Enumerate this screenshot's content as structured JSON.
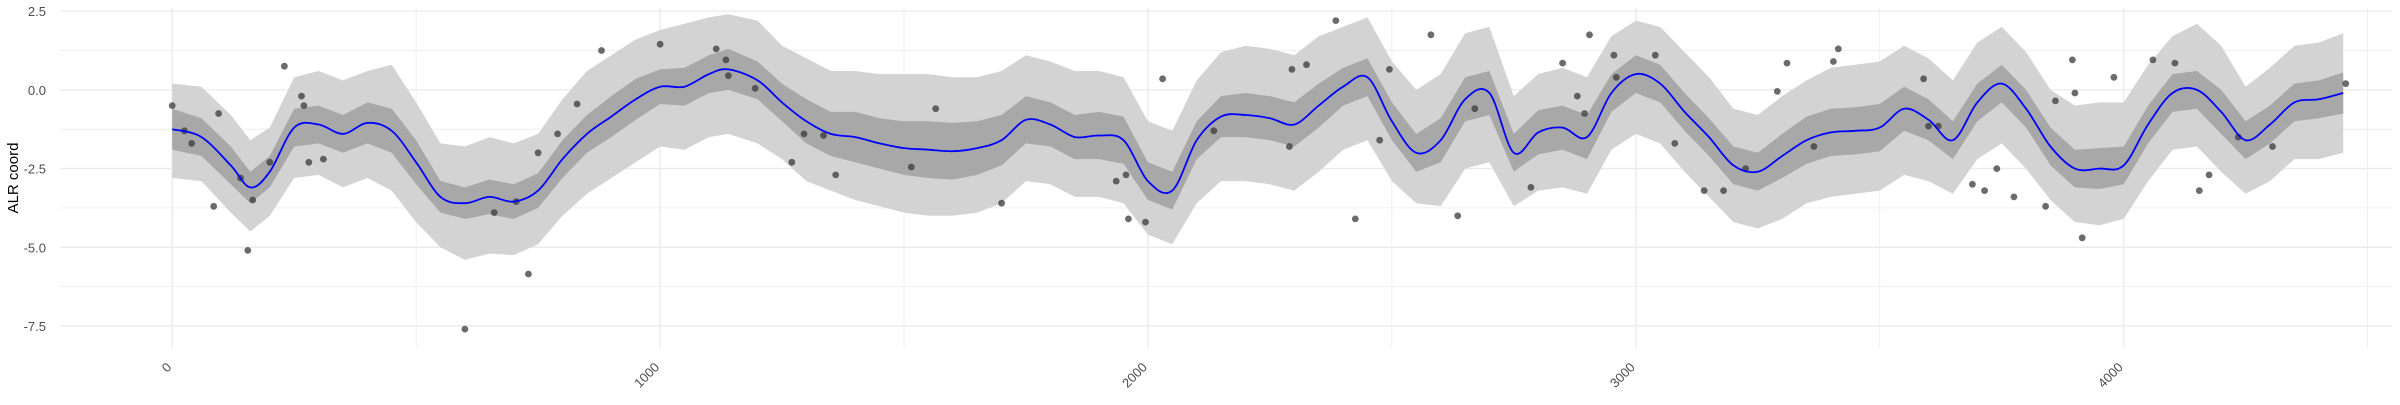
{
  "chart_data": {
    "type": "line",
    "title": "",
    "xlabel": "",
    "ylabel": "ALR coord",
    "xlim": [
      -230,
      4550
    ],
    "ylim": [
      -8.2,
      2.6
    ],
    "grid": true,
    "legend": "none",
    "x_ticks": [
      0,
      1000,
      2000,
      3000,
      4000
    ],
    "x_tick_labels": [
      "0",
      "1000",
      "2000",
      "3000",
      "4000"
    ],
    "y_ticks": [
      2.5,
      0,
      -2.5,
      -5,
      -7.5
    ],
    "y_tick_labels": [
      "2.5",
      "0.0",
      "-2.5",
      "-5.0",
      "-7.5"
    ],
    "colors": {
      "mean_line": "#0000ff",
      "inner_band": "#a8a8a8",
      "outer_band": "#d3d3d3",
      "points": "#3a3a3a",
      "grid": "#ebebeb",
      "tick_text": "#4d4d4d",
      "axis_title": "#000000"
    },
    "bands": {
      "x": [
        0,
        60,
        120,
        160,
        200,
        250,
        300,
        350,
        400,
        450,
        500,
        550,
        600,
        650,
        700,
        750,
        800,
        850,
        900,
        950,
        1000,
        1050,
        1100,
        1140,
        1200,
        1250,
        1300,
        1350,
        1400,
        1450,
        1500,
        1550,
        1600,
        1650,
        1700,
        1750,
        1800,
        1850,
        1900,
        1950,
        2000,
        2050,
        2100,
        2150,
        2200,
        2250,
        2300,
        2350,
        2400,
        2450,
        2500,
        2550,
        2600,
        2650,
        2700,
        2750,
        2800,
        2850,
        2900,
        2950,
        3000,
        3050,
        3100,
        3150,
        3200,
        3250,
        3300,
        3350,
        3400,
        3450,
        3500,
        3550,
        3600,
        3650,
        3700,
        3750,
        3800,
        3850,
        3900,
        3950,
        4000,
        4050,
        4100,
        4150,
        4200,
        4250,
        4300,
        4350,
        4400,
        4450
      ],
      "mean": [
        -1.25,
        -1.5,
        -2.4,
        -3.1,
        -2.6,
        -1.2,
        -1.1,
        -1.4,
        -1.05,
        -1.3,
        -2.3,
        -3.4,
        -3.6,
        -3.4,
        -3.55,
        -3.2,
        -2.2,
        -1.4,
        -0.85,
        -0.3,
        0.1,
        0.1,
        0.5,
        0.65,
        0.3,
        -0.4,
        -1.0,
        -1.4,
        -1.5,
        -1.7,
        -1.85,
        -1.9,
        -1.95,
        -1.85,
        -1.6,
        -0.95,
        -1.1,
        -1.5,
        -1.45,
        -1.6,
        -2.9,
        -3.2,
        -1.6,
        -0.85,
        -0.8,
        -0.9,
        -1.1,
        -0.5,
        0.1,
        0.4,
        -1.0,
        -2.0,
        -1.6,
        -0.3,
        -0.1,
        -2.0,
        -1.35,
        -1.2,
        -1.5,
        -0.1,
        0.5,
        0.2,
        -0.7,
        -1.5,
        -2.4,
        -2.6,
        -2.1,
        -1.6,
        -1.35,
        -1.3,
        -1.2,
        -0.6,
        -0.95,
        -1.6,
        -0.4,
        0.2,
        -0.6,
        -1.8,
        -2.5,
        -2.5,
        -2.4,
        -1.1,
        -0.1,
        0.0,
        -0.7,
        -1.6,
        -1.1,
        -0.4,
        -0.3,
        -0.1
      ],
      "inner_lower": [
        -1.9,
        -2.1,
        -3.0,
        -3.6,
        -3.1,
        -1.8,
        -1.7,
        -2.0,
        -1.7,
        -2.0,
        -3.0,
        -3.9,
        -4.1,
        -3.95,
        -4.1,
        -3.75,
        -2.8,
        -2.0,
        -1.5,
        -0.95,
        -0.45,
        -0.5,
        -0.1,
        0.0,
        -0.3,
        -1.0,
        -1.7,
        -2.1,
        -2.3,
        -2.5,
        -2.7,
        -2.8,
        -2.85,
        -2.7,
        -2.4,
        -1.7,
        -1.8,
        -2.2,
        -2.2,
        -2.35,
        -3.5,
        -3.8,
        -2.2,
        -1.5,
        -1.5,
        -1.6,
        -1.8,
        -1.2,
        -0.5,
        -0.2,
        -1.6,
        -2.6,
        -2.3,
        -1.0,
        -0.8,
        -2.6,
        -2.05,
        -1.9,
        -2.2,
        -0.7,
        -0.1,
        -0.4,
        -1.3,
        -2.1,
        -3.0,
        -3.2,
        -2.8,
        -2.35,
        -2.1,
        -2.05,
        -1.95,
        -1.3,
        -1.6,
        -2.2,
        -1.0,
        -0.4,
        -1.2,
        -2.4,
        -3.1,
        -3.15,
        -3.0,
        -1.7,
        -0.7,
        -0.6,
        -1.4,
        -2.2,
        -1.7,
        -1.0,
        -0.9,
        -0.75
      ],
      "inner_upper": [
        -0.6,
        -0.9,
        -1.8,
        -2.6,
        -2.1,
        -0.6,
        -0.5,
        -0.8,
        -0.4,
        -0.6,
        -1.6,
        -2.9,
        -3.1,
        -2.85,
        -3.0,
        -2.65,
        -1.6,
        -0.8,
        -0.2,
        0.35,
        0.65,
        0.7,
        1.1,
        1.3,
        0.9,
        0.2,
        -0.3,
        -0.7,
        -0.7,
        -0.9,
        -1.0,
        -1.0,
        -1.05,
        -1.0,
        -0.8,
        -0.2,
        -0.4,
        -0.8,
        -0.7,
        -0.85,
        -2.3,
        -2.6,
        -1.0,
        -0.2,
        -0.1,
        -0.2,
        -0.4,
        0.2,
        0.7,
        1.0,
        -0.4,
        -1.4,
        -0.9,
        0.4,
        0.6,
        -1.4,
        -0.65,
        -0.5,
        -0.8,
        0.5,
        1.1,
        0.8,
        -0.1,
        -0.9,
        -1.8,
        -2.0,
        -1.4,
        -0.85,
        -0.6,
        -0.55,
        -0.45,
        0.1,
        -0.3,
        -1.0,
        0.2,
        0.8,
        0.0,
        -1.2,
        -1.9,
        -1.85,
        -1.8,
        -0.5,
        0.5,
        0.6,
        0.0,
        -1.0,
        -0.5,
        0.2,
        0.3,
        0.55
      ],
      "outer_lower": [
        -2.8,
        -2.9,
        -3.9,
        -4.5,
        -4.0,
        -2.8,
        -2.7,
        -3.1,
        -2.8,
        -3.2,
        -4.2,
        -5.0,
        -5.4,
        -5.2,
        -5.25,
        -4.9,
        -4.0,
        -3.3,
        -2.8,
        -2.3,
        -1.8,
        -1.9,
        -1.5,
        -1.4,
        -1.7,
        -2.2,
        -2.9,
        -3.2,
        -3.5,
        -3.7,
        -3.9,
        -4.0,
        -4.0,
        -3.9,
        -3.6,
        -2.9,
        -3.0,
        -3.4,
        -3.4,
        -3.6,
        -4.6,
        -4.9,
        -3.6,
        -2.9,
        -2.9,
        -3.0,
        -3.2,
        -2.6,
        -1.9,
        -1.6,
        -2.9,
        -3.6,
        -3.7,
        -2.5,
        -2.3,
        -3.7,
        -3.2,
        -3.1,
        -3.3,
        -1.9,
        -1.4,
        -1.7,
        -2.6,
        -3.4,
        -4.2,
        -4.4,
        -4.1,
        -3.6,
        -3.4,
        -3.3,
        -3.2,
        -2.7,
        -2.9,
        -3.3,
        -2.2,
        -1.7,
        -2.5,
        -3.5,
        -4.2,
        -4.3,
        -4.1,
        -2.9,
        -1.9,
        -1.8,
        -2.6,
        -3.3,
        -2.9,
        -2.2,
        -2.2,
        -2.0
      ],
      "outer_upper": [
        0.2,
        0.1,
        -0.8,
        -1.6,
        -1.2,
        0.4,
        0.6,
        0.3,
        0.6,
        0.8,
        -0.4,
        -1.7,
        -1.8,
        -1.5,
        -1.7,
        -1.4,
        -0.3,
        0.6,
        1.1,
        1.6,
        1.9,
        2.1,
        2.3,
        2.4,
        2.2,
        1.4,
        1.0,
        0.6,
        0.6,
        0.5,
        0.5,
        0.5,
        0.4,
        0.4,
        0.6,
        1.1,
        0.9,
        0.6,
        0.6,
        0.4,
        -1.0,
        -1.3,
        0.3,
        1.2,
        1.4,
        1.3,
        1.1,
        1.7,
        2.0,
        2.3,
        0.9,
        0.0,
        0.5,
        1.8,
        2.0,
        -0.2,
        0.5,
        0.7,
        0.4,
        1.7,
        2.2,
        2.0,
        1.2,
        0.4,
        -0.6,
        -0.8,
        -0.2,
        0.3,
        0.7,
        0.8,
        0.9,
        1.4,
        1.0,
        0.3,
        1.5,
        2.0,
        1.2,
        0.0,
        -0.5,
        -0.4,
        -0.4,
        0.8,
        1.7,
        2.1,
        1.4,
        0.1,
        0.7,
        1.4,
        1.5,
        1.8
      ]
    },
    "points": {
      "x": [
        0,
        25,
        40,
        85,
        95,
        140,
        155,
        165,
        200,
        230,
        265,
        270,
        280,
        310,
        600,
        660,
        705,
        730,
        750,
        790,
        830,
        880,
        1000,
        1115,
        1135,
        1140,
        1195,
        1270,
        1295,
        1335,
        1360,
        1515,
        1565,
        1700,
        1935,
        1955,
        1960,
        1995,
        2030,
        2135,
        2290,
        2295,
        2325,
        2385,
        2425,
        2475,
        2495,
        2580,
        2635,
        2670,
        2785,
        2850,
        2880,
        2895,
        2905,
        2955,
        2960,
        3040,
        3080,
        3140,
        3180,
        3225,
        3290,
        3310,
        3365,
        3405,
        3415,
        3590,
        3600,
        3620,
        3690,
        3715,
        3740,
        3775,
        3840,
        3860,
        3895,
        3900,
        3915,
        3980,
        4060,
        4105,
        4155,
        4175,
        4235,
        4305,
        4455
      ],
      "y": [
        -0.5,
        -1.3,
        -1.7,
        -3.7,
        -0.75,
        -2.8,
        -5.1,
        -3.5,
        -2.3,
        0.75,
        -0.2,
        -0.5,
        -2.3,
        -2.2,
        -7.6,
        -3.9,
        -3.55,
        -5.85,
        -2.0,
        -1.4,
        -0.45,
        1.25,
        1.45,
        1.3,
        0.95,
        0.45,
        0.05,
        -2.3,
        -1.4,
        -1.45,
        -2.7,
        -2.45,
        -0.6,
        -3.6,
        -2.9,
        -2.7,
        -4.1,
        -4.2,
        0.35,
        -1.3,
        -1.8,
        0.65,
        0.8,
        2.2,
        -4.1,
        -1.6,
        0.65,
        1.75,
        -4.0,
        -0.6,
        -3.1,
        0.85,
        -0.2,
        -0.75,
        1.75,
        1.1,
        0.4,
        1.1,
        -1.7,
        -3.2,
        -3.2,
        -2.5,
        -0.05,
        0.85,
        -1.8,
        0.9,
        1.3,
        0.35,
        -1.15,
        -1.15,
        -3.0,
        -3.2,
        -2.5,
        -3.4,
        -3.7,
        -0.35,
        0.95,
        -0.1,
        -4.7,
        0.4,
        0.95,
        0.85,
        -3.2,
        -2.7,
        -1.5,
        -1.8,
        0.2
      ]
    }
  }
}
